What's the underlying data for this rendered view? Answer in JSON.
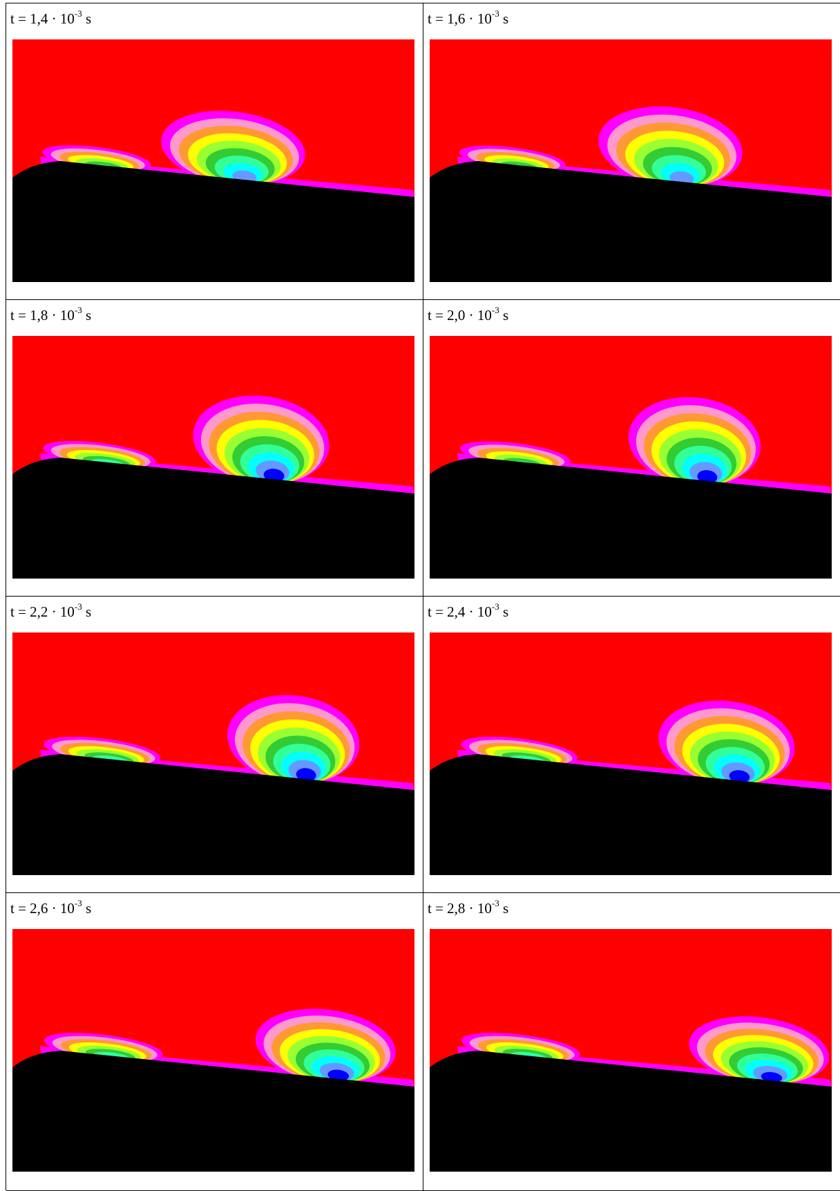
{
  "colors": {
    "background": "#ff0000",
    "wall": "#000000",
    "levels": [
      "#ff00ff",
      "#ff99cc",
      "#ff9933",
      "#ffff00",
      "#99ff33",
      "#33cc33",
      "#33ff99",
      "#00ffff",
      "#6699ff",
      "#0000ff"
    ]
  },
  "panels": [
    {
      "id": "p1",
      "time": "t = 1,4 · 10",
      "exp": "-3",
      "unit": " s",
      "lead": 0.6,
      "main": 0.55,
      "mainW": 0.36,
      "mainH": 0.33,
      "mainMax": 9
    },
    {
      "id": "p2",
      "time": "t = 1,6 · 10",
      "exp": "-3",
      "unit": " s",
      "lead": 0.5,
      "main": 0.6,
      "mainW": 0.36,
      "mainH": 0.36,
      "mainMax": 9
    },
    {
      "id": "p3",
      "time": "t = 1,8 · 10",
      "exp": "-3",
      "unit": " s",
      "lead": 0.8,
      "main": 0.62,
      "mainW": 0.34,
      "mainH": 0.4,
      "mainMax": 10
    },
    {
      "id": "p4",
      "time": "t = 2,0 · 10",
      "exp": "-3",
      "unit": " s",
      "lead": 0.7,
      "main": 0.66,
      "mainW": 0.33,
      "mainH": 0.4,
      "mainMax": 10
    },
    {
      "id": "p5",
      "time": "t = 2,2 · 10",
      "exp": "-3",
      "unit": " s",
      "lead": 1.0,
      "main": 0.7,
      "mainW": 0.33,
      "mainH": 0.4,
      "mainMax": 10
    },
    {
      "id": "p6",
      "time": "t = 2,4 · 10",
      "exp": "-3",
      "unit": " s",
      "lead": 1.0,
      "main": 0.74,
      "mainW": 0.34,
      "mainH": 0.38,
      "mainMax": 10
    },
    {
      "id": "p7",
      "time": "t = 2,6 · 10",
      "exp": "-3",
      "unit": " s",
      "lead": 1.1,
      "main": 0.78,
      "mainW": 0.35,
      "mainH": 0.33,
      "mainMax": 10
    },
    {
      "id": "p8",
      "time": "t = 2,8 · 10",
      "exp": "-3",
      "unit": " s",
      "lead": 1.1,
      "main": 0.82,
      "mainW": 0.35,
      "mainH": 0.3,
      "mainMax": 10
    }
  ]
}
